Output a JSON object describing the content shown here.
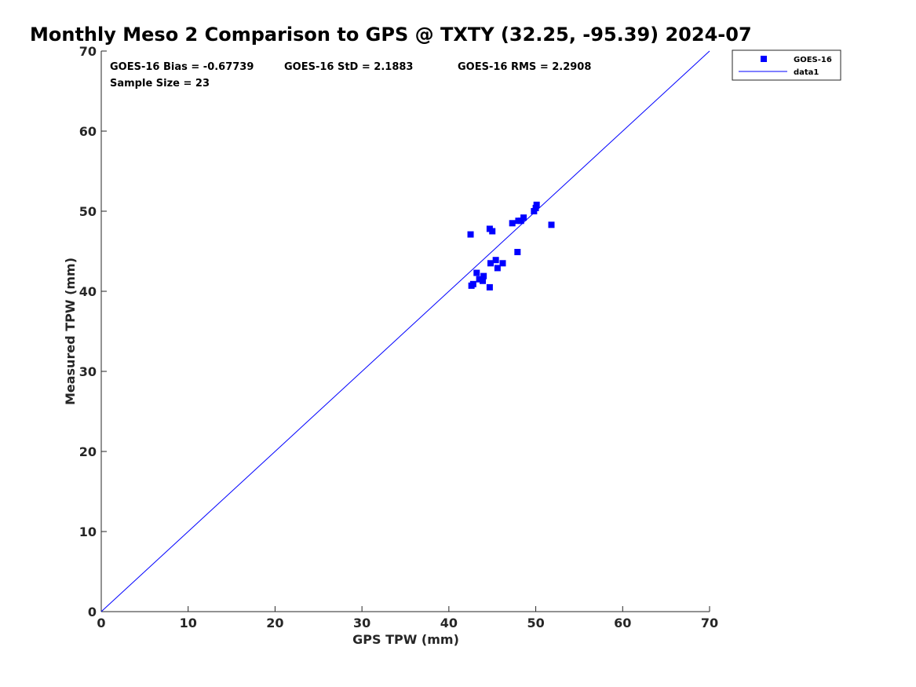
{
  "chart_data": {
    "type": "scatter",
    "title": "Monthly Meso 2 Comparison to GPS @ TXTY (32.25, -95.39) 2024-07",
    "xlabel": "GPS TPW (mm)",
    "ylabel": "Measured TPW (mm)",
    "xlim": [
      0,
      70
    ],
    "ylim": [
      0,
      70
    ],
    "xticks": [
      "0",
      "10",
      "20",
      "30",
      "40",
      "50",
      "60",
      "70"
    ],
    "yticks": [
      "0",
      "10",
      "20",
      "30",
      "40",
      "50",
      "60",
      "70"
    ],
    "grid": false,
    "legend_position": "top-right (outside)",
    "stats": {
      "bias": "GOES-16 Bias = -0.67739",
      "std": "GOES-16 StD = 2.1883",
      "rms": "GOES-16 RMS = 2.2908",
      "sample_size": "Sample Size = 23"
    },
    "series": [
      {
        "name": "GOES-16",
        "marker": "square",
        "color": "#0000ff",
        "points": [
          [
            42.5,
            47.1
          ],
          [
            44.7,
            47.8
          ],
          [
            45.0,
            47.5
          ],
          [
            47.3,
            48.5
          ],
          [
            48.0,
            48.8
          ],
          [
            48.3,
            48.8
          ],
          [
            48.6,
            49.2
          ],
          [
            49.8,
            50.0
          ],
          [
            50.0,
            50.4
          ],
          [
            50.1,
            50.8
          ],
          [
            51.8,
            48.3
          ],
          [
            47.9,
            44.9
          ],
          [
            45.4,
            43.9
          ],
          [
            46.2,
            43.5
          ],
          [
            44.8,
            43.5
          ],
          [
            45.6,
            42.9
          ],
          [
            43.2,
            42.3
          ],
          [
            44.0,
            41.9
          ],
          [
            43.5,
            41.5
          ],
          [
            43.9,
            41.3
          ],
          [
            42.8,
            40.9
          ],
          [
            42.6,
            40.7
          ],
          [
            44.7,
            40.5
          ]
        ]
      },
      {
        "name": "data1",
        "type": "line",
        "color": "#0000ff",
        "points": [
          [
            0,
            0
          ],
          [
            70,
            70
          ]
        ]
      }
    ]
  }
}
